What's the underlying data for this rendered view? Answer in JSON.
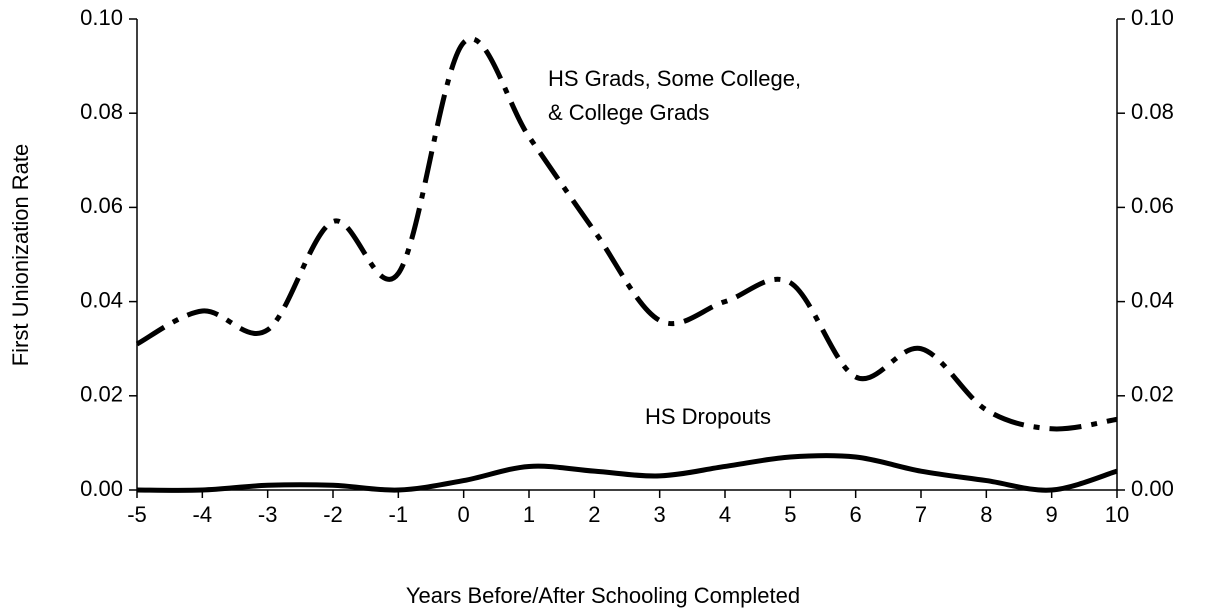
{
  "chart_data": {
    "type": "line",
    "x_label": "Years Before/After Schooling Completed",
    "y_label": "First Unionization Rate",
    "x": [
      -5,
      -4,
      -3,
      -2,
      -1,
      0,
      1,
      2,
      3,
      4,
      5,
      6,
      7,
      8,
      9,
      10
    ],
    "series": [
      {
        "label": [
          "HS Grads, Some College,",
          "& College Grads"
        ],
        "color": "#000000",
        "dash": true,
        "values": [
          0.031,
          0.038,
          0.034,
          0.057,
          0.046,
          0.095,
          0.075,
          0.055,
          0.036,
          0.04,
          0.044,
          0.024,
          0.03,
          0.017,
          0.013,
          0.015
        ]
      },
      {
        "label": [
          "HS Dropouts"
        ],
        "color": "#000000",
        "dash": false,
        "values": [
          0,
          0,
          0.001,
          0.001,
          0,
          0.002,
          0.005,
          0.004,
          0.003,
          0.005,
          0.007,
          0.007,
          0.004,
          0.002,
          0,
          0.004
        ]
      }
    ],
    "xlim": [
      -5,
      10
    ],
    "xticks": [
      -5,
      -4,
      -3,
      -2,
      -1,
      0,
      1,
      2,
      3,
      4,
      5,
      6,
      7,
      8,
      9,
      10
    ],
    "ylim": [
      0,
      0.1
    ],
    "yticks": [
      {
        "value": 0,
        "label": "0.00"
      },
      {
        "value": 0.02,
        "label": "0.02"
      },
      {
        "value": 0.04,
        "label": "0.04"
      },
      {
        "value": 0.06,
        "label": "0.06"
      },
      {
        "value": 0.08,
        "label": "0.08"
      },
      {
        "value": 0.1,
        "label": "0.10"
      }
    ]
  }
}
